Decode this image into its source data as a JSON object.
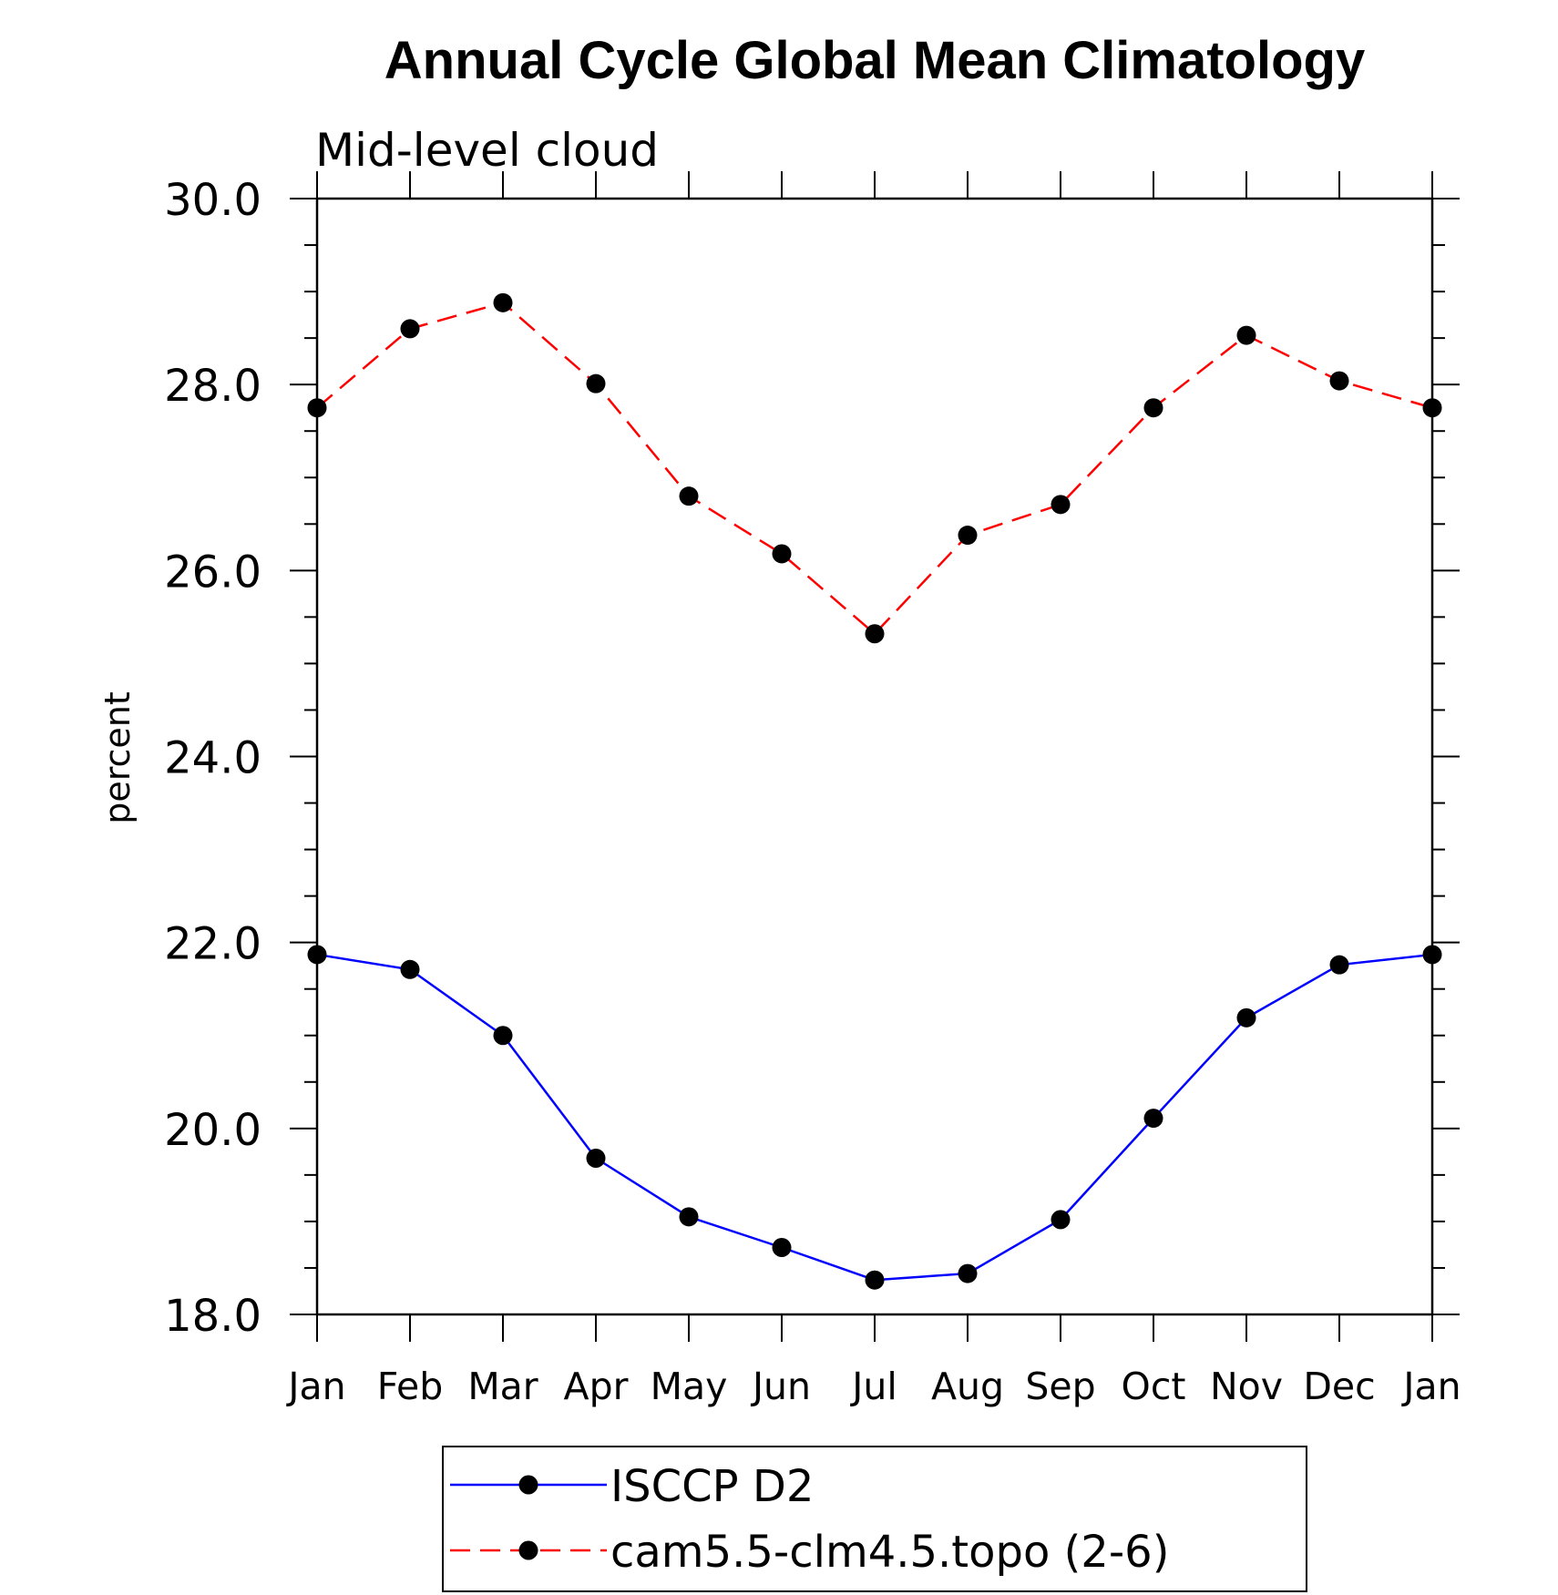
{
  "chart_data": {
    "type": "line",
    "title": "Annual Cycle Global Mean Climatology",
    "subtitle": "Mid-level cloud",
    "xlabel": "",
    "ylabel": "percent",
    "categories": [
      "Jan",
      "Feb",
      "Mar",
      "Apr",
      "May",
      "Jun",
      "Jul",
      "Aug",
      "Sep",
      "Oct",
      "Nov",
      "Dec",
      "Jan"
    ],
    "ylim": [
      18.0,
      30.0
    ],
    "y_ticks": [
      "18.0",
      "20.0",
      "22.0",
      "24.0",
      "26.0",
      "28.0",
      "30.0"
    ],
    "y_minor_step": 0.5,
    "grid": false,
    "legend_position": "bottom-center",
    "series": [
      {
        "name": "ISCCP D2",
        "color": "#0000ff",
        "line_style": "solid",
        "marker": "filled-circle",
        "values": [
          21.87,
          21.71,
          21.0,
          19.68,
          19.05,
          18.72,
          18.37,
          18.44,
          19.02,
          20.11,
          21.19,
          21.76,
          21.87
        ]
      },
      {
        "name": "cam5.5-clm4.5.topo (2-6)",
        "color": "#ff0000",
        "line_style": "dashed",
        "marker": "filled-circle",
        "values": [
          27.75,
          28.6,
          28.88,
          28.01,
          26.8,
          26.18,
          25.32,
          26.38,
          26.71,
          27.75,
          28.53,
          28.04,
          27.75
        ]
      }
    ]
  }
}
